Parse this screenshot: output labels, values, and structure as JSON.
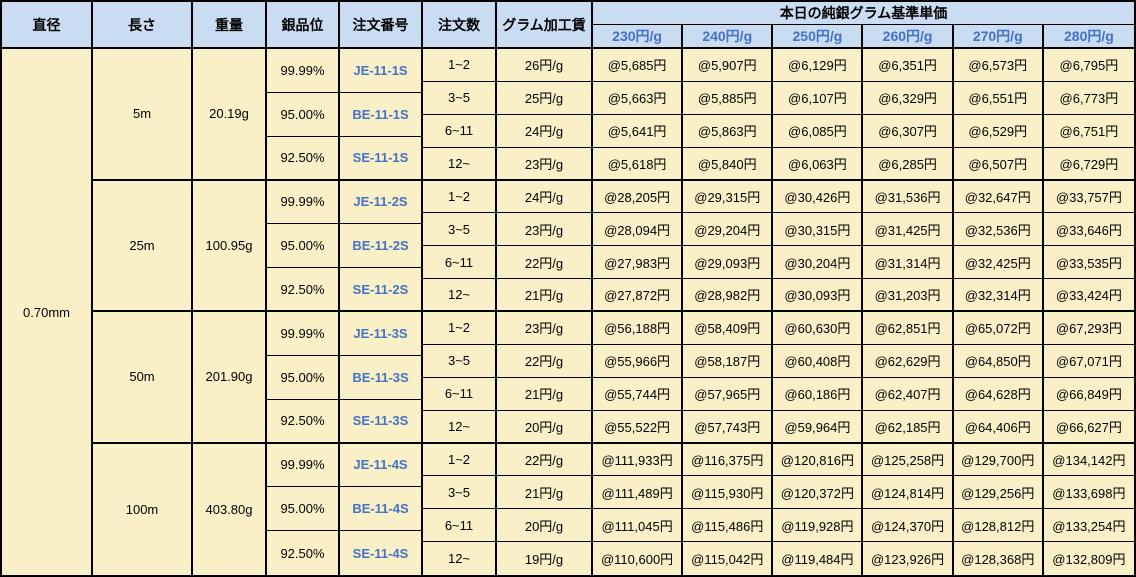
{
  "colors": {
    "header_bg": "#C9DCF2",
    "body_bg": "#FAF0C8",
    "accent_blue_text": "#4472C4",
    "grid_line": "#000000"
  },
  "header": {
    "columns": [
      "直径",
      "長さ",
      "重量",
      "銀品位",
      "注文番号",
      "注文数",
      "グラム加工賃"
    ],
    "price_group_title": "本日の純銀グラム基準単価",
    "price_columns": [
      "230円/g",
      "240円/g",
      "250円/g",
      "260円/g",
      "270円/g",
      "280円/g"
    ]
  },
  "diameter": "0.70mm",
  "groups": [
    {
      "length": "5m",
      "weight": "20.19g",
      "purities": [
        {
          "purity": "99.99%",
          "order_no": "JE-11-1S"
        },
        {
          "purity": "95.00%",
          "order_no": "BE-11-1S"
        },
        {
          "purity": "92.50%",
          "order_no": "SE-11-1S"
        }
      ],
      "rows": [
        {
          "qty": "1~2",
          "fee": "26円/g",
          "prices": [
            "@5,685円",
            "@5,907円",
            "@6,129円",
            "@6,351円",
            "@6,573円",
            "@6,795円"
          ]
        },
        {
          "qty": "3~5",
          "fee": "25円/g",
          "prices": [
            "@5,663円",
            "@5,885円",
            "@6,107円",
            "@6,329円",
            "@6,551円",
            "@6,773円"
          ]
        },
        {
          "qty": "6~11",
          "fee": "24円/g",
          "prices": [
            "@5,641円",
            "@5,863円",
            "@6,085円",
            "@6,307円",
            "@6,529円",
            "@6,751円"
          ]
        },
        {
          "qty": "12~",
          "fee": "23円/g",
          "prices": [
            "@5,618円",
            "@5,840円",
            "@6,063円",
            "@6,285円",
            "@6,507円",
            "@6,729円"
          ]
        }
      ]
    },
    {
      "length": "25m",
      "weight": "100.95g",
      "purities": [
        {
          "purity": "99.99%",
          "order_no": "JE-11-2S"
        },
        {
          "purity": "95.00%",
          "order_no": "BE-11-2S"
        },
        {
          "purity": "92.50%",
          "order_no": "SE-11-2S"
        }
      ],
      "rows": [
        {
          "qty": "1~2",
          "fee": "24円/g",
          "prices": [
            "@28,205円",
            "@29,315円",
            "@30,426円",
            "@31,536円",
            "@32,647円",
            "@33,757円"
          ]
        },
        {
          "qty": "3~5",
          "fee": "23円/g",
          "prices": [
            "@28,094円",
            "@29,204円",
            "@30,315円",
            "@31,425円",
            "@32,536円",
            "@33,646円"
          ]
        },
        {
          "qty": "6~11",
          "fee": "22円/g",
          "prices": [
            "@27,983円",
            "@29,093円",
            "@30,204円",
            "@31,314円",
            "@32,425円",
            "@33,535円"
          ]
        },
        {
          "qty": "12~",
          "fee": "21円/g",
          "prices": [
            "@27,872円",
            "@28,982円",
            "@30,093円",
            "@31,203円",
            "@32,314円",
            "@33,424円"
          ]
        }
      ]
    },
    {
      "length": "50m",
      "weight": "201.90g",
      "purities": [
        {
          "purity": "99.99%",
          "order_no": "JE-11-3S"
        },
        {
          "purity": "95.00%",
          "order_no": "BE-11-3S"
        },
        {
          "purity": "92.50%",
          "order_no": "SE-11-3S"
        }
      ],
      "rows": [
        {
          "qty": "1~2",
          "fee": "23円/g",
          "prices": [
            "@56,188円",
            "@58,409円",
            "@60,630円",
            "@62,851円",
            "@65,072円",
            "@67,293円"
          ]
        },
        {
          "qty": "3~5",
          "fee": "22円/g",
          "prices": [
            "@55,966円",
            "@58,187円",
            "@60,408円",
            "@62,629円",
            "@64,850円",
            "@67,071円"
          ]
        },
        {
          "qty": "6~11",
          "fee": "21円/g",
          "prices": [
            "@55,744円",
            "@57,965円",
            "@60,186円",
            "@62,407円",
            "@64,628円",
            "@66,849円"
          ]
        },
        {
          "qty": "12~",
          "fee": "20円/g",
          "prices": [
            "@55,522円",
            "@57,743円",
            "@59,964円",
            "@62,185円",
            "@64,406円",
            "@66,627円"
          ]
        }
      ]
    },
    {
      "length": "100m",
      "weight": "403.80g",
      "purities": [
        {
          "purity": "99.99%",
          "order_no": "JE-11-4S"
        },
        {
          "purity": "95.00%",
          "order_no": "BE-11-4S"
        },
        {
          "purity": "92.50%",
          "order_no": "SE-11-4S"
        }
      ],
      "rows": [
        {
          "qty": "1~2",
          "fee": "22円/g",
          "prices": [
            "@111,933円",
            "@116,375円",
            "@120,816円",
            "@125,258円",
            "@129,700円",
            "@134,142円"
          ]
        },
        {
          "qty": "3~5",
          "fee": "21円/g",
          "prices": [
            "@111,489円",
            "@115,930円",
            "@120,372円",
            "@124,814円",
            "@129,256円",
            "@133,698円"
          ]
        },
        {
          "qty": "6~11",
          "fee": "20円/g",
          "prices": [
            "@111,045円",
            "@115,486円",
            "@119,928円",
            "@124,370円",
            "@128,812円",
            "@133,254円"
          ]
        },
        {
          "qty": "12~",
          "fee": "19円/g",
          "prices": [
            "@110,600円",
            "@115,042円",
            "@119,484円",
            "@123,926円",
            "@128,368円",
            "@132,809円"
          ]
        }
      ]
    }
  ]
}
